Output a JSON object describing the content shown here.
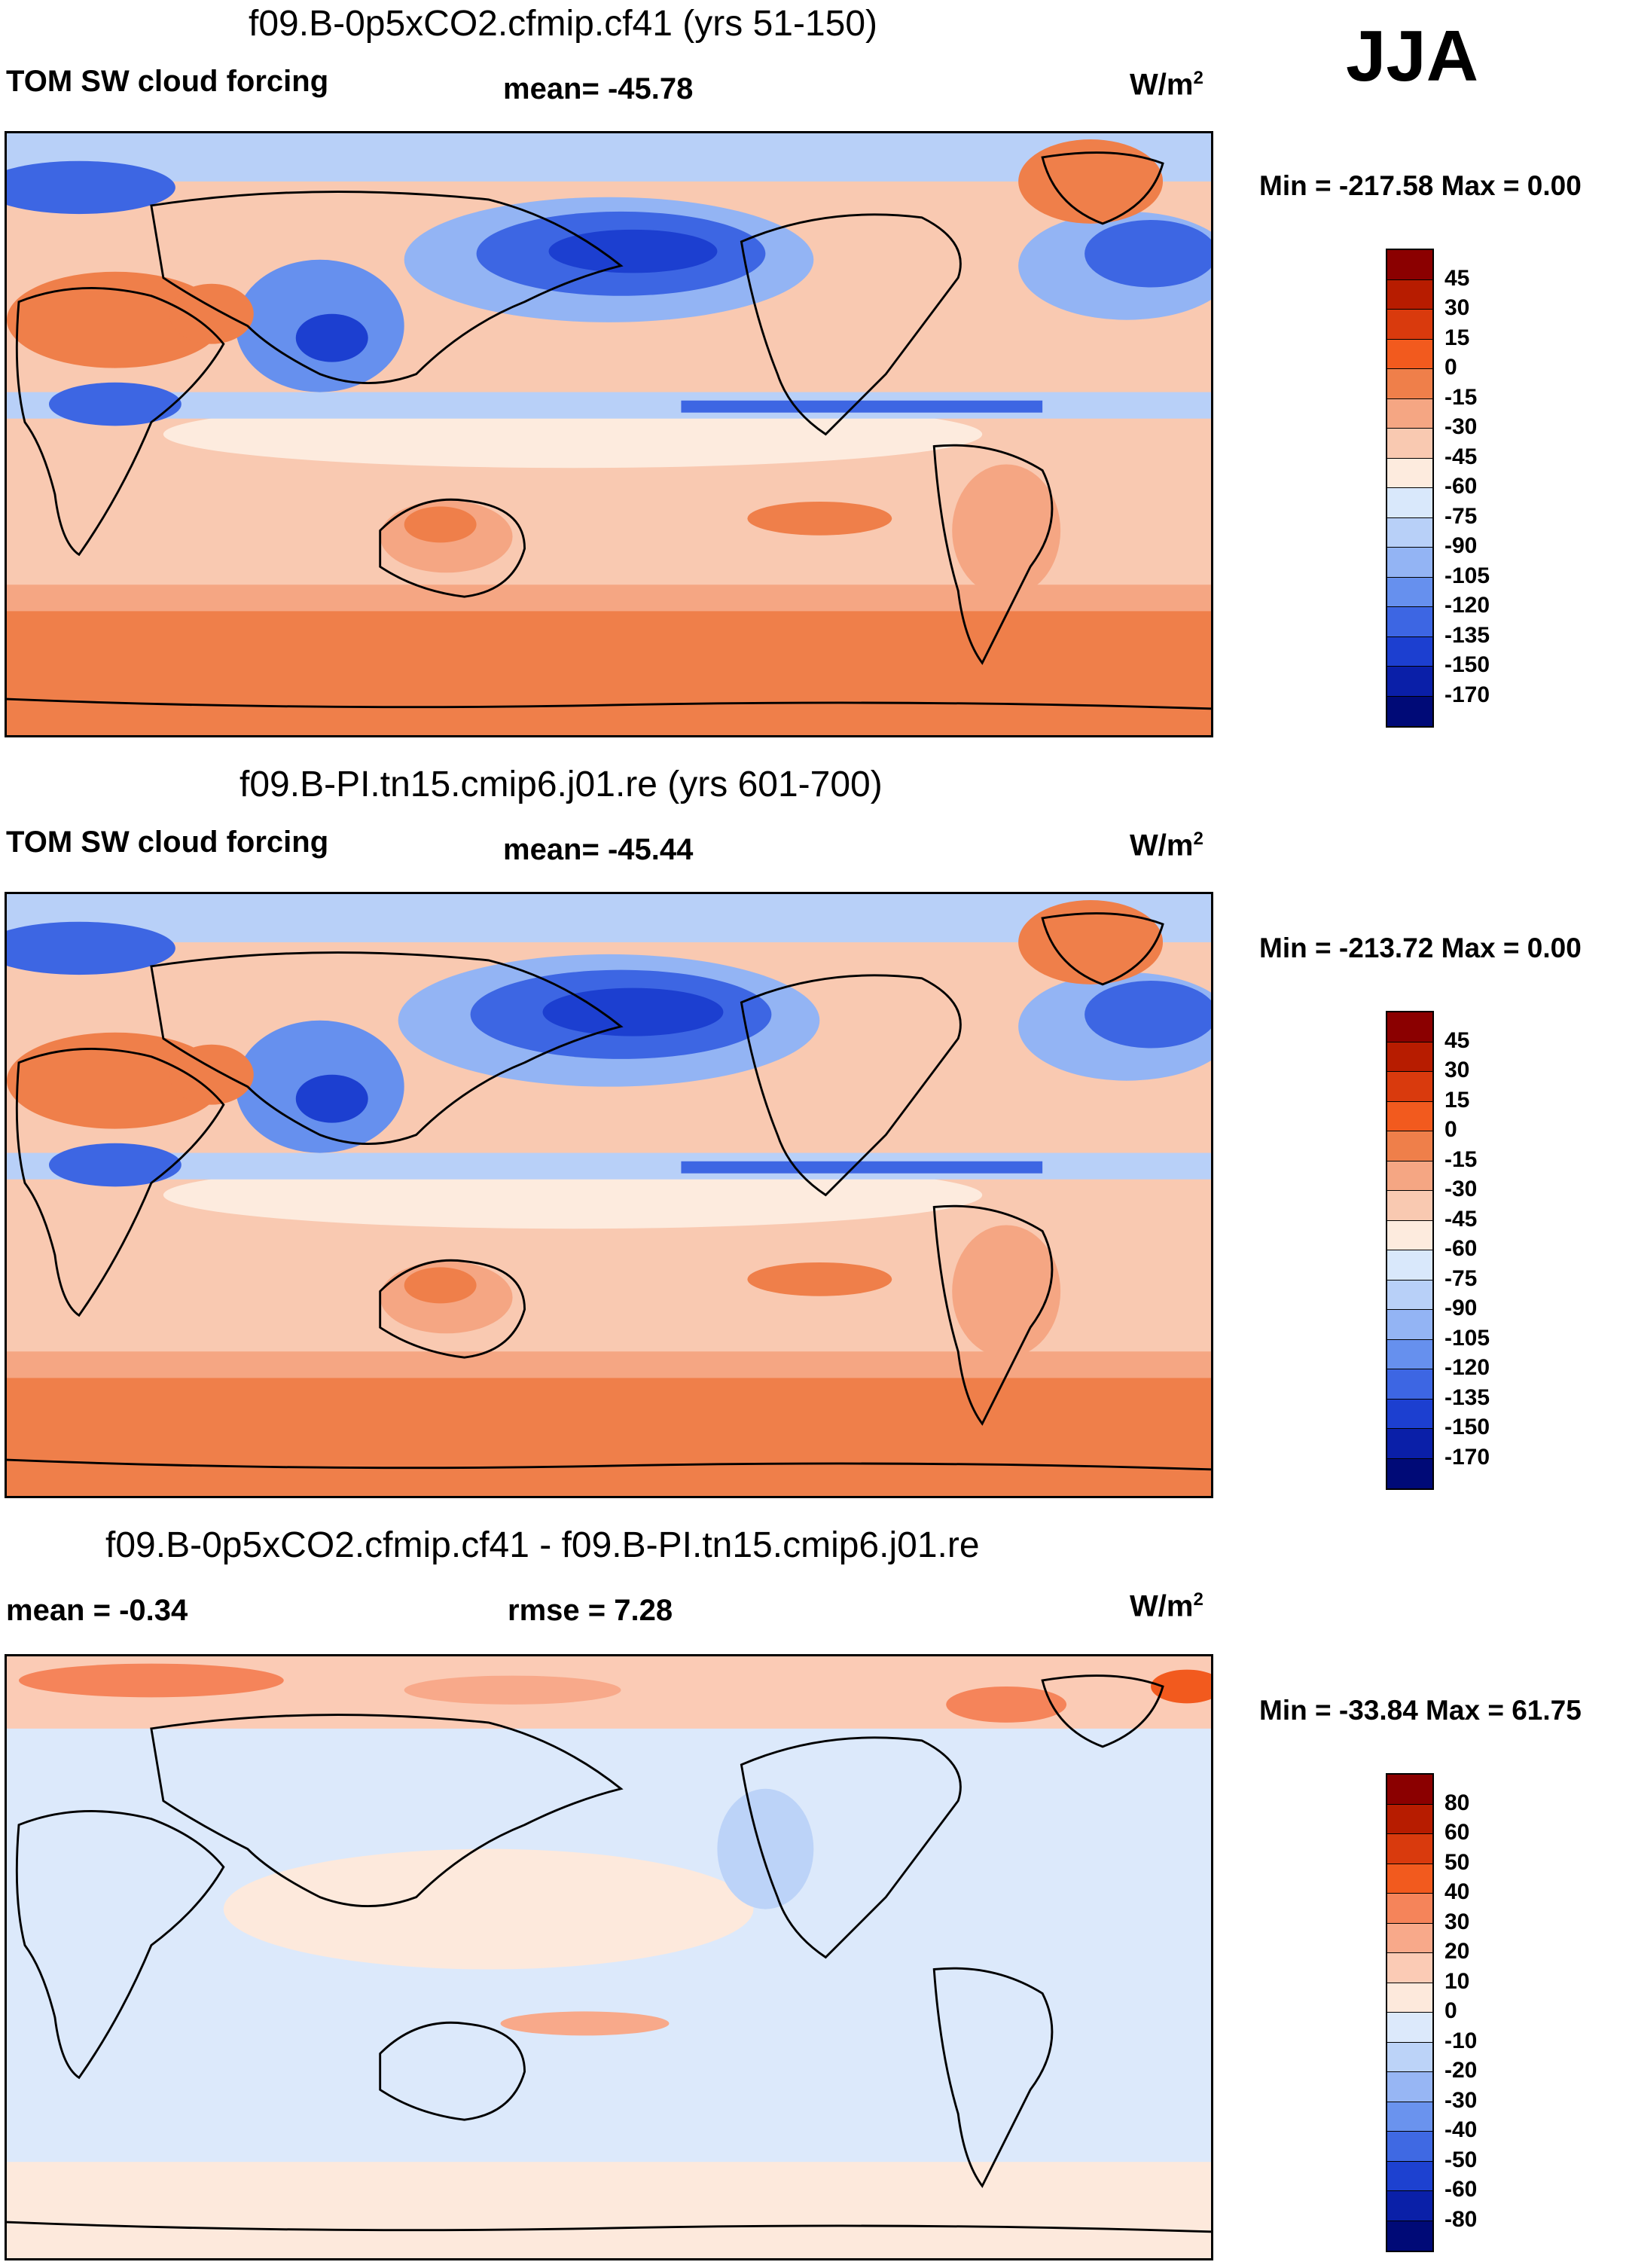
{
  "season": "JJA",
  "panels": [
    {
      "title": "f09.B-0p5xCO2.cfmip.cf41 (yrs 51-150)",
      "left_label": "TOM SW cloud forcing",
      "center_label": "mean= -45.78",
      "units": "W/m",
      "units_exp": "2",
      "minmax": "Min = -217.58 Max =   0.00",
      "colorbar_levels": [
        "45",
        "30",
        "15",
        "0",
        "-15",
        "-30",
        "-45",
        "-60",
        "-75",
        "-90",
        "-105",
        "-120",
        "-135",
        "-150",
        "-170"
      ],
      "colors": [
        "#8b0000",
        "#b71c00",
        "#d93a0d",
        "#f25a1e",
        "#ef7f4a",
        "#f5a683",
        "#f9c9b1",
        "#fdebde",
        "#d9e8fb",
        "#b8d0f8",
        "#93b4f4",
        "#6690ee",
        "#3d66e3",
        "#1c3fd0",
        "#0a1fa8",
        "#000a77"
      ]
    },
    {
      "title": "f09.B-PI.tn15.cmip6.j01.re (yrs 601-700)",
      "left_label": "TOM SW cloud forcing",
      "center_label": "mean= -45.44",
      "units": "W/m",
      "units_exp": "2",
      "minmax": "Min = -213.72 Max =   0.00",
      "colorbar_levels": [
        "45",
        "30",
        "15",
        "0",
        "-15",
        "-30",
        "-45",
        "-60",
        "-75",
        "-90",
        "-105",
        "-120",
        "-135",
        "-150",
        "-170"
      ],
      "colors": [
        "#8b0000",
        "#b71c00",
        "#d93a0d",
        "#f25a1e",
        "#ef7f4a",
        "#f5a683",
        "#f9c9b1",
        "#fdebde",
        "#d9e8fb",
        "#b8d0f8",
        "#93b4f4",
        "#6690ee",
        "#3d66e3",
        "#1c3fd0",
        "#0a1fa8",
        "#000a77"
      ]
    },
    {
      "title": "f09.B-0p5xCO2.cfmip.cf41 - f09.B-PI.tn15.cmip6.j01.re",
      "left_label": "mean =  -0.34",
      "center_label": "rmse =   7.28",
      "units": "W/m",
      "units_exp": "2",
      "minmax": "Min = -33.84 Max =  61.75",
      "colorbar_levels": [
        "80",
        "60",
        "50",
        "40",
        "30",
        "20",
        "10",
        "0",
        "-10",
        "-20",
        "-30",
        "-40",
        "-50",
        "-60",
        "-80"
      ],
      "colors": [
        "#8b0000",
        "#b71c00",
        "#d93a0d",
        "#f25a1e",
        "#f5845a",
        "#f8a98a",
        "#fbcbb5",
        "#fde9dc",
        "#dce9fb",
        "#bcd3f8",
        "#97b6f4",
        "#6a93ee",
        "#3f69e3",
        "#1d41d0",
        "#0a20a8",
        "#000a77"
      ]
    }
  ],
  "chart_data": [
    {
      "type": "heatmap",
      "title": "f09.B-0p5xCO2.cfmip.cf41 (yrs 51-150)",
      "variable": "TOM SW cloud forcing",
      "units": "W/m2",
      "season": "JJA",
      "mean": -45.78,
      "min": -217.58,
      "max": 0.0,
      "contour_levels": [
        -170,
        -150,
        -135,
        -120,
        -105,
        -90,
        -75,
        -60,
        -45,
        -30,
        -15,
        0,
        15,
        30,
        45
      ]
    },
    {
      "type": "heatmap",
      "title": "f09.B-PI.tn15.cmip6.j01.re (yrs 601-700)",
      "variable": "TOM SW cloud forcing",
      "units": "W/m2",
      "season": "JJA",
      "mean": -45.44,
      "min": -213.72,
      "max": 0.0,
      "contour_levels": [
        -170,
        -150,
        -135,
        -120,
        -105,
        -90,
        -75,
        -60,
        -45,
        -30,
        -15,
        0,
        15,
        30,
        45
      ]
    },
    {
      "type": "heatmap",
      "title": "f09.B-0p5xCO2.cfmip.cf41 - f09.B-PI.tn15.cmip6.j01.re",
      "units": "W/m2",
      "season": "JJA",
      "mean": -0.34,
      "rmse": 7.28,
      "min": -33.84,
      "max": 61.75,
      "contour_levels": [
        -80,
        -60,
        -50,
        -40,
        -30,
        -20,
        -10,
        0,
        10,
        20,
        30,
        40,
        50,
        60,
        80
      ]
    }
  ]
}
